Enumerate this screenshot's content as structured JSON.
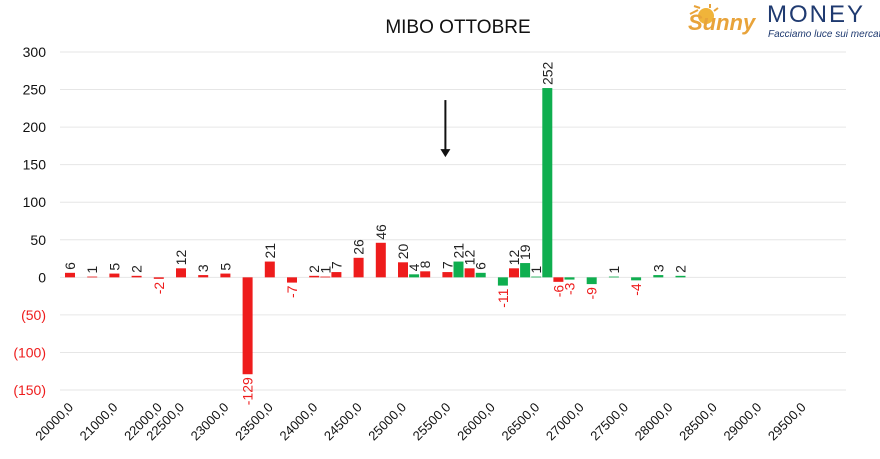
{
  "logo": {
    "brand": "Sunny",
    "money": "MONEY",
    "tagline": "Facciamo luce sui mercati"
  },
  "colors": {
    "put": "#ee1c1c",
    "call": "#0fae4f",
    "negative_label": "#ee1c1c",
    "positive_label": "#222222"
  },
  "chart_data": {
    "type": "bar",
    "title": "MIBO OTTOBRE",
    "xlabel": "",
    "ylabel": "",
    "ylim": [
      -150,
      300
    ],
    "yticks": [
      300,
      250,
      200,
      150,
      100,
      50,
      0,
      -50,
      -100,
      -150
    ],
    "ytick_labels": [
      "300",
      "250",
      "200",
      "150",
      "100",
      "50",
      "0",
      "(50)",
      "(100)",
      "(150)"
    ],
    "grid": true,
    "legend": "none",
    "x_tick_labels": [
      "20000,0",
      "21000,0",
      "22000,0",
      "22500,0",
      "23000,0",
      "23500,0",
      "24000,0",
      "24500,0",
      "25000,0",
      "25500,0",
      "26000,0",
      "26500,0",
      "27000,0",
      "27500,0",
      "28000,0",
      "28500,0",
      "29000,0",
      "29500,0"
    ],
    "x_tick_indices": [
      0,
      2,
      4,
      5,
      7,
      9,
      11,
      13,
      15,
      17,
      19,
      21,
      23,
      25,
      27,
      29,
      31,
      33
    ],
    "bars": [
      {
        "i": 0,
        "value": 6,
        "color": "put"
      },
      {
        "i": 1,
        "value": 1,
        "color": "put"
      },
      {
        "i": 2,
        "value": 5,
        "color": "put"
      },
      {
        "i": 3,
        "value": 2,
        "color": "put"
      },
      {
        "i": 4,
        "value": -2,
        "color": "put"
      },
      {
        "i": 5,
        "value": 12,
        "color": "put"
      },
      {
        "i": 6,
        "value": 3,
        "color": "put"
      },
      {
        "i": 7,
        "value": 5,
        "color": "put"
      },
      {
        "i": 8,
        "value": -129,
        "color": "put"
      },
      {
        "i": 9,
        "value": 21,
        "color": "put"
      },
      {
        "i": 10,
        "value": -7,
        "color": "put"
      },
      {
        "i": 11,
        "value": 2,
        "color": "put"
      },
      {
        "i": 11.5,
        "value": 1,
        "color": "put"
      },
      {
        "i": 12,
        "value": 7,
        "color": "put"
      },
      {
        "i": 13,
        "value": 26,
        "color": "put"
      },
      {
        "i": 14,
        "value": 46,
        "color": "put"
      },
      {
        "i": 15,
        "value": 20,
        "color": "put"
      },
      {
        "i": 15.5,
        "value": 4,
        "color": "call"
      },
      {
        "i": 16,
        "value": 8,
        "color": "put"
      },
      {
        "i": 17,
        "value": 7,
        "color": "put"
      },
      {
        "i": 17.5,
        "value": 21,
        "color": "call"
      },
      {
        "i": 18,
        "value": 12,
        "color": "put"
      },
      {
        "i": 18.5,
        "value": 6,
        "color": "call"
      },
      {
        "i": 19.5,
        "value": -11,
        "color": "call"
      },
      {
        "i": 20,
        "value": 12,
        "color": "put"
      },
      {
        "i": 20.5,
        "value": 19,
        "color": "call"
      },
      {
        "i": 21,
        "value": 1,
        "color": "call"
      },
      {
        "i": 21.5,
        "value": 252,
        "color": "call"
      },
      {
        "i": 22,
        "value": -6,
        "color": "put"
      },
      {
        "i": 22.5,
        "value": -3,
        "color": "call"
      },
      {
        "i": 23.5,
        "value": -9,
        "color": "call"
      },
      {
        "i": 24.5,
        "value": 1,
        "color": "call"
      },
      {
        "i": 25.5,
        "value": -4,
        "color": "call"
      },
      {
        "i": 26.5,
        "value": 3,
        "color": "call"
      },
      {
        "i": 27.5,
        "value": 2,
        "color": "call"
      }
    ],
    "annotations": [
      {
        "type": "arrow",
        "at_index": 17,
        "from_value": 236,
        "to_value": 160
      }
    ]
  }
}
